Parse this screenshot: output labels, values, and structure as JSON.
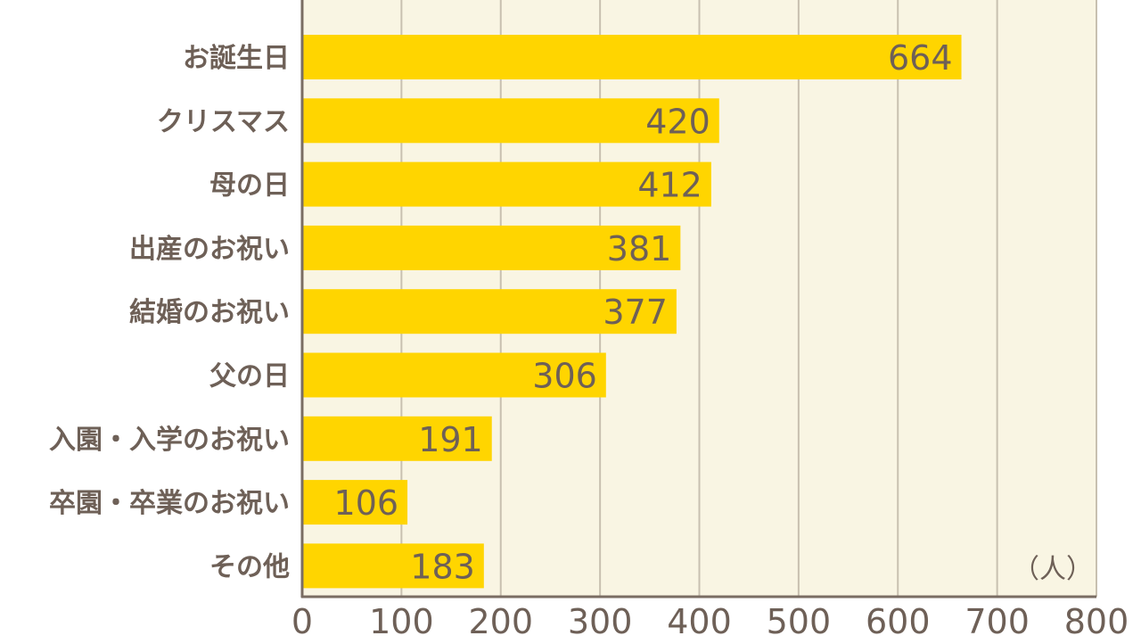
{
  "chart_data": {
    "type": "bar",
    "orientation": "horizontal",
    "categories": [
      "お誕生日",
      "クリスマス",
      "母の日",
      "出産のお祝い",
      "結婚のお祝い",
      "父の日",
      "入園・入学のお祝い",
      "卒園・卒業のお祝い",
      "その他"
    ],
    "values": [
      664,
      420,
      412,
      381,
      377,
      306,
      191,
      106,
      183
    ],
    "xlim": [
      0,
      800
    ],
    "xticks": [
      "0",
      "100",
      "200",
      "300",
      "400",
      "500",
      "600",
      "700",
      "800"
    ],
    "unit_label": "（人）",
    "grid": true,
    "data_labels": true,
    "colors": {
      "bar": "#FFD500",
      "plot_background": "#F9F5E3",
      "grid": "#C8C0B0",
      "axis": "#7A6D63",
      "text": "#6E6057"
    }
  }
}
